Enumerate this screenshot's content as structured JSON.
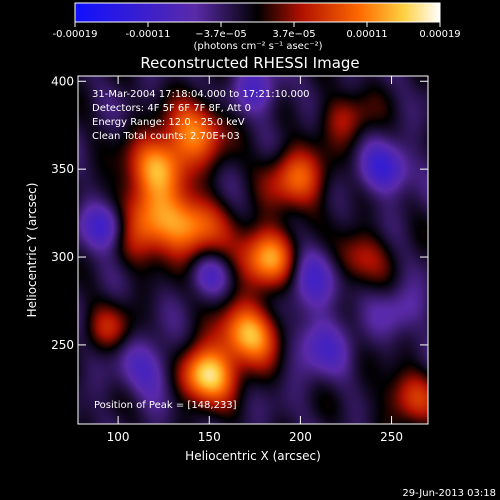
{
  "chart_data": {
    "type": "heatmap",
    "title": "Reconstructed RHESSI Image",
    "xlabel": "Heliocentric X (arcsec)",
    "ylabel": "Heliocentric Y (arcsec)",
    "xlim": [
      78,
      270
    ],
    "ylim": [
      205,
      403
    ],
    "x_ticks": [
      100,
      150,
      200,
      250
    ],
    "y_ticks": [
      250,
      300,
      350,
      400
    ],
    "colorbar": {
      "min": -0.00019,
      "max": 0.00019,
      "tick_labels": [
        "-0.00019",
        "-0.00011",
        "−3.7e−05",
        "3.7e−05",
        "0.00011",
        "0.00019"
      ],
      "label": "(photons cm⁻² s⁻¹ asec⁻²)"
    },
    "annotations": {
      "time_range": "31-Mar-2004 17:18:04.000 to 17:21:10.000",
      "detectors": "Detectors: 4F 5F 6F 7F 8F, Att 0",
      "energy_range": "Energy Range: 12.0 - 25.0 keV",
      "algorithm": "Clean  Total counts: 2.70E+03",
      "peak": "Position of Peak = [148,233]"
    },
    "peak": [
      148,
      233
    ],
    "sources": [
      {
        "x": 148,
        "y": 233,
        "amp": 1.0,
        "sigma": 11
      },
      {
        "x": 172,
        "y": 256,
        "amp": 0.85,
        "sigma": 12
      },
      {
        "x": 183,
        "y": 300,
        "amp": 0.9,
        "sigma": 12
      },
      {
        "x": 112,
        "y": 320,
        "amp": 0.75,
        "sigma": 14
      },
      {
        "x": 140,
        "y": 318,
        "amp": 0.7,
        "sigma": 12
      },
      {
        "x": 122,
        "y": 352,
        "amp": 0.75,
        "sigma": 12
      },
      {
        "x": 142,
        "y": 372,
        "amp": 0.65,
        "sigma": 12
      },
      {
        "x": 198,
        "y": 345,
        "amp": 0.6,
        "sigma": 12
      },
      {
        "x": 230,
        "y": 300,
        "amp": 0.45,
        "sigma": 11
      },
      {
        "x": 260,
        "y": 220,
        "amp": 0.45,
        "sigma": 11
      },
      {
        "x": 225,
        "y": 380,
        "amp": 0.35,
        "sigma": 10
      },
      {
        "x": 95,
        "y": 260,
        "amp": 0.35,
        "sigma": 9
      },
      {
        "x": 95,
        "y": 318,
        "amp": -0.75,
        "sigma": 10
      },
      {
        "x": 205,
        "y": 292,
        "amp": -0.45,
        "sigma": 14
      },
      {
        "x": 246,
        "y": 350,
        "amp": -0.5,
        "sigma": 10
      },
      {
        "x": 118,
        "y": 236,
        "amp": -0.35,
        "sigma": 12
      },
      {
        "x": 210,
        "y": 250,
        "amp": -0.35,
        "sigma": 12
      },
      {
        "x": 175,
        "y": 395,
        "amp": -0.35,
        "sigma": 10
      },
      {
        "x": 255,
        "y": 270,
        "amp": -0.25,
        "sigma": 10
      },
      {
        "x": 150,
        "y": 290,
        "amp": -0.3,
        "sigma": 8
      }
    ]
  },
  "footer": {
    "timestamp": "29-Jun-2013 03:18"
  }
}
